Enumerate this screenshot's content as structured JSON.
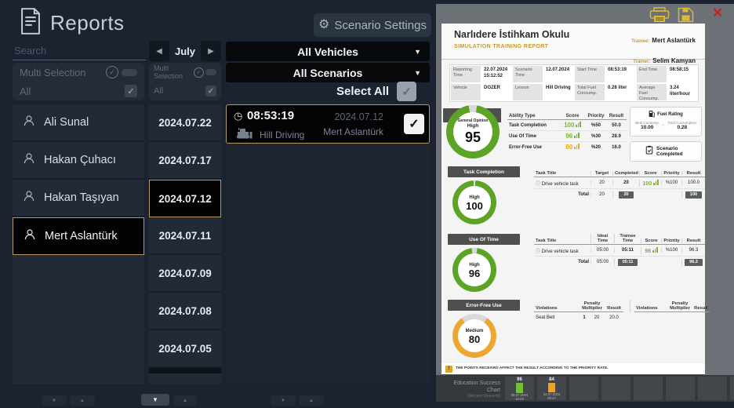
{
  "app": {
    "title": "Reports",
    "scenario_settings_label": "Scenario Settings"
  },
  "icons": {
    "close": "✕",
    "caret_down": "▼",
    "prev": "◀",
    "next": "▶",
    "check": "✓",
    "clock": "◷",
    "gear": "⚙",
    "info": "ⓘ",
    "scroll_down": "▼",
    "scroll_up": "▲",
    "warning": "!"
  },
  "filters": {
    "search_placeholder": "Search",
    "trainee_filter": {
      "multi_selection_label": "Multi Selection",
      "all_label": "All"
    },
    "date_filter": {
      "month_label": "July",
      "multi_selection_label": "Multi Selection",
      "all_label": "All"
    },
    "vehicles_dropdown_value": "All Vehicles",
    "scenarios_dropdown_value": "All Scenarios",
    "select_all_label": "Select All"
  },
  "trainees": [
    {
      "name": "Ali Sunal"
    },
    {
      "name": "Hakan Çuhacı"
    },
    {
      "name": "Hakan Taşıyan"
    },
    {
      "name": "Mert Aslantürk"
    }
  ],
  "dates": [
    {
      "label": "2024.07.22"
    },
    {
      "label": "2024.07.17"
    },
    {
      "label": "2024.07.12"
    },
    {
      "label": "2024.07.11"
    },
    {
      "label": "2024.07.09"
    },
    {
      "label": "2024.07.08"
    },
    {
      "label": "2024.07.05"
    }
  ],
  "session": {
    "time": "08:53:19",
    "date": "2024.07.12",
    "lesson": "Hill Driving",
    "trainee": "Mert Aslantürk"
  },
  "report": {
    "school": "Narlıdere İstihkam Okulu",
    "subtitle": "SIMULATION TRAINING REPORT",
    "trainee_label": "Trainee:",
    "trainee_name": "Mert Aslantürk",
    "trainer_label": "Trainer:",
    "trainer_name": "Selim Kamyan",
    "info": {
      "reporting_time_label": "Reporting Time",
      "reporting_time": "22.07.2024 15:12:52",
      "scenario_time_label": "Scenario Time",
      "scenario_time": "12.07.2024",
      "start_time_label": "Start Time",
      "start_time": "08:53:19",
      "end_time_label": "End Time",
      "end_time": "08:58:15",
      "vehicle_label": "Vehicle",
      "vehicle": "DOZER",
      "lesson_label": "Lesson",
      "lesson": "Hill Driving",
      "total_fuel_label": "Total Fuel Consump.",
      "total_fuel": "0.28 liter",
      "avg_fuel_label": "Average Fuel Consump.",
      "avg_fuel": "3.24 liter/hour"
    },
    "general_opinion": {
      "label": "General Opinion",
      "level": "High",
      "score": 95,
      "ring": "#5ca426"
    },
    "ability_table": {
      "headers": {
        "ability": "Ability Type",
        "score": "Score",
        "priority": "Priority",
        "result": "Result"
      },
      "rows": [
        {
          "ability": "Task Completion",
          "score": "100",
          "priority": "%50",
          "result": "50.0"
        },
        {
          "ability": "Use Of Time",
          "score": "96",
          "priority": "%30",
          "result": "28.9"
        },
        {
          "ability": "Error-Free Use",
          "score": "80",
          "priority": "%20",
          "result": "16.0"
        }
      ]
    },
    "fuel_rating": {
      "title": "Fuel Rating",
      "ideal_label": "Ideal Consump.",
      "ideal_value": "10.00",
      "total_label": "Total Consumption",
      "total_value": "0.28"
    },
    "scenario_completed_label": "Scenario Completed",
    "task_completion": {
      "badge": "Task Completion",
      "level": "High",
      "score": 100,
      "ring": "#5ca426",
      "headers": {
        "title": "Task Title",
        "target": "Target",
        "completed": "Completed",
        "score": "Score",
        "priority": "Priority",
        "result": "Result"
      },
      "row": {
        "title": "Drive vehicle task",
        "target": "20",
        "completed": "20",
        "score": "100",
        "priority": "%100",
        "result": "100.0"
      },
      "total_label": "Total",
      "total_target": "20",
      "total_completed": "20",
      "total_result": "100"
    },
    "use_of_time": {
      "badge": "Use Of Time",
      "level": "High",
      "score": 96,
      "ring": "#5ca426",
      "headers": {
        "title": "Task Title",
        "ideal": "Ideal Time",
        "trainee": "Trainee Time",
        "score": "Score",
        "priority": "Priority",
        "result": "Result"
      },
      "row": {
        "title": "Drive vehicle task",
        "ideal": "05:00",
        "trainee": "05:11",
        "score": "96",
        "priority": "%100",
        "result": "96.3"
      },
      "total_label": "Total",
      "total_ideal": "05:00",
      "total_trainee": "05:11",
      "total_result": "96.3"
    },
    "error_free": {
      "badge": "Error-Free Use",
      "level": "Medium",
      "score": 80,
      "ring": "#eda62f",
      "headers": {
        "violations": "Violations",
        "multiplier": "Penalty Multiplier",
        "result": "Result"
      },
      "row": {
        "violation": "Seat Belt",
        "count": "1",
        "multiplier": "20",
        "result": "20.0"
      }
    },
    "note": "THE POINTS RECEIVED AFFECT THE RESULT ACCORDING TO THE PRIORITY RATE."
  },
  "chart_data": {
    "type": "bar",
    "title": "Education Success Chart",
    "subtitle": "(Recent Reports)",
    "ylim": [
      0,
      100
    ],
    "bars": [
      {
        "value": 96,
        "date": "08.07.2024",
        "time": "15:03",
        "color": "#74bf38"
      },
      {
        "value": 84,
        "date": "12.07.2024",
        "time": "08:47",
        "color": "#f0a41e"
      }
    ]
  },
  "colors": {
    "selection_border": "#b49b5e",
    "report_accent": "#c49b32",
    "score_green": "#7ab52e",
    "score_orange": "#f0ad00",
    "icon_gold": "#d9b83a",
    "close_red": "#c4231f"
  }
}
